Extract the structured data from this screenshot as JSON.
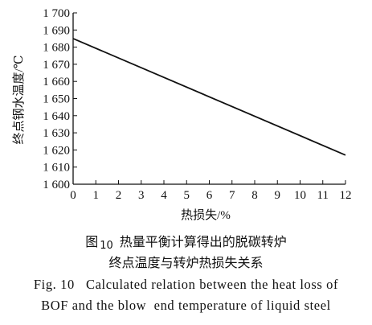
{
  "chart_data": {
    "type": "line",
    "xlabel": "热损失/%",
    "ylabel": "终点钢水温度/℃",
    "x_ticks": [
      0,
      1,
      2,
      3,
      4,
      5,
      6,
      7,
      8,
      9,
      10,
      11,
      12
    ],
    "y_ticks": [
      1600,
      1610,
      1620,
      1630,
      1640,
      1650,
      1660,
      1670,
      1680,
      1690,
      1700
    ],
    "y_tick_labels": [
      "1 600",
      "1 610",
      "1 620",
      "1 630",
      "1 640",
      "1 650",
      "1 660",
      "1 670",
      "1 680",
      "1 690",
      "1 700"
    ],
    "xlim": [
      0,
      12
    ],
    "ylim": [
      1600,
      1700
    ],
    "grid": false,
    "series": [
      {
        "x": [
          0,
          12
        ],
        "y": [
          1685,
          1617
        ]
      }
    ]
  },
  "caption": {
    "cn_prefix": "图",
    "cn_number": "10",
    "cn_line1": "热量平衡计算得出的脱碳转炉",
    "cn_line2": "终点温度与转炉热损失关系",
    "en_line1": "Fig. 10   Calculated relation between the heat loss of",
    "en_line2": "BOF and the blow  end temperature of liquid steel"
  }
}
